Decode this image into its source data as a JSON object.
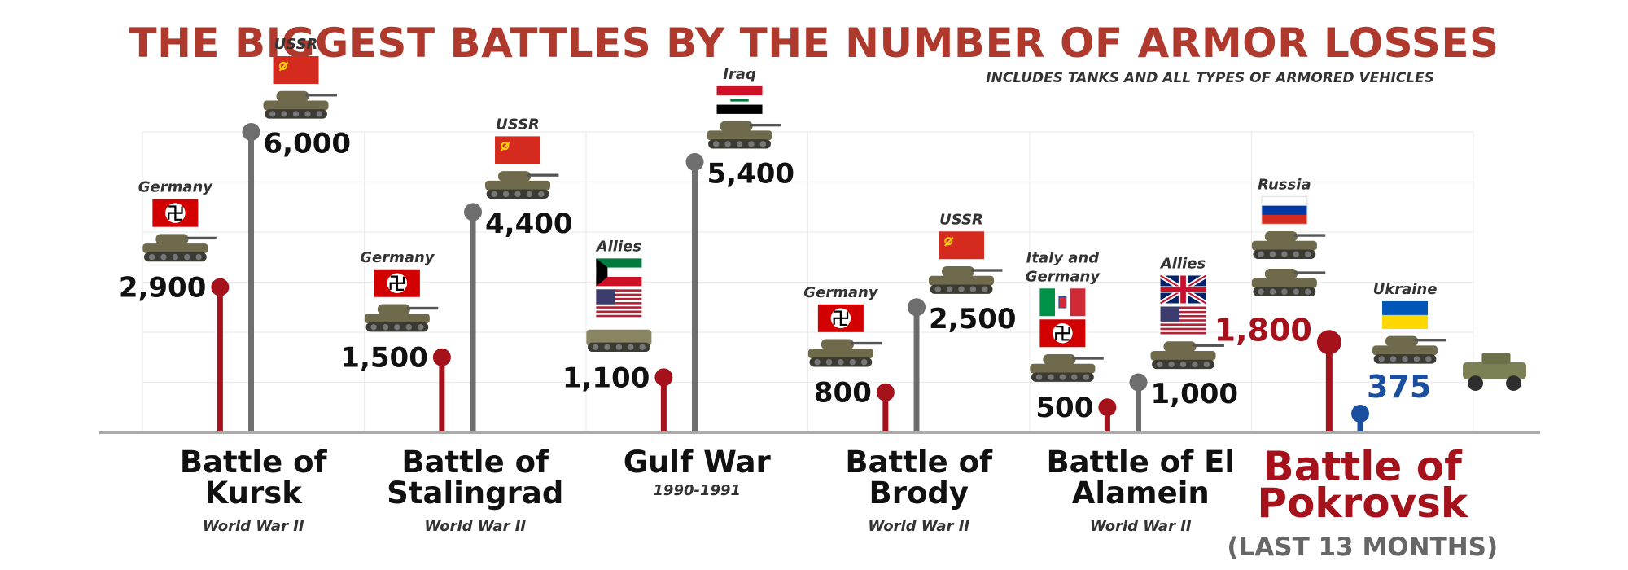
{
  "header": {
    "title": "THE BIGGEST BATTLES BY THE NUMBER OF ARMOR LOSSES",
    "subtitle": "INCLUDES TANKS AND ALL TYPES OF ARMORED VEHICLES"
  },
  "colors": {
    "title": "#b0392d",
    "loser": "#a5121c",
    "winner": "#6e6e6e",
    "ukraine": "#1a4fa0"
  },
  "chart_data": {
    "type": "lollipop",
    "title": "THE BIGGEST BATTLES BY THE NUMBER OF ARMOR LOSSES",
    "subtitle": "INCLUDES TANKS AND ALL TYPES OF ARMORED VEHICLES",
    "xlabel": "",
    "ylabel": "",
    "ylim": [
      0,
      6000
    ],
    "grid": true,
    "categories": [
      "Battle of Kursk",
      "Battle of Stalingrad",
      "Gulf War",
      "Battle of Brody",
      "Battle of El Alamein",
      "Battle of Pokrovsk"
    ],
    "battles": [
      {
        "name": "Battle of Kursk",
        "subtitle": "World War II",
        "sides": [
          {
            "label": "Germany",
            "value": 2900,
            "value_label": "2,900",
            "flags": [
              "germany"
            ],
            "color": "#a5121c"
          },
          {
            "label": "USSR",
            "value": 6000,
            "value_label": "6,000",
            "flags": [
              "ussr"
            ],
            "color": "#6e6e6e"
          }
        ]
      },
      {
        "name": "Battle of Stalingrad",
        "subtitle": "World War II",
        "sides": [
          {
            "label": "Germany",
            "value": 1500,
            "value_label": "1,500",
            "flags": [
              "germany"
            ],
            "color": "#a5121c"
          },
          {
            "label": "USSR",
            "value": 4400,
            "value_label": "4,400",
            "flags": [
              "ussr"
            ],
            "color": "#6e6e6e"
          }
        ]
      },
      {
        "name": "Gulf War",
        "subtitle": "1990-1991",
        "sides": [
          {
            "label": "Allies",
            "value": 1100,
            "value_label": "1,100",
            "flags": [
              "kuwait",
              "usa"
            ],
            "color": "#a5121c"
          },
          {
            "label": "Iraq",
            "value": 5400,
            "value_label": "5,400",
            "flags": [
              "iraq"
            ],
            "color": "#6e6e6e"
          }
        ]
      },
      {
        "name": "Battle of Brody",
        "subtitle": "World War II",
        "sides": [
          {
            "label": "Germany",
            "value": 800,
            "value_label": "800",
            "flags": [
              "germany"
            ],
            "color": "#a5121c"
          },
          {
            "label": "USSR",
            "value": 2500,
            "value_label": "2,500",
            "flags": [
              "ussr"
            ],
            "color": "#6e6e6e"
          }
        ]
      },
      {
        "name": "Battle of El Alamein",
        "subtitle": "World War II",
        "sides": [
          {
            "label": "Italy and Germany",
            "value": 500,
            "value_label": "500",
            "flags": [
              "italy",
              "germany"
            ],
            "color": "#a5121c"
          },
          {
            "label": "Allies",
            "value": 1000,
            "value_label": "1,000",
            "flags": [
              "uk",
              "usa"
            ],
            "color": "#6e6e6e"
          }
        ]
      },
      {
        "name": "Battle of Pokrovsk",
        "subtitle": "(LAST 13 MONTHS)",
        "highlight": true,
        "sides": [
          {
            "label": "Russia",
            "value": 1800,
            "value_label": "1,800",
            "flags": [
              "russia"
            ],
            "color": "#a5121c"
          },
          {
            "label": "Ukraine",
            "value": 375,
            "value_label": "375",
            "flags": [
              "ukraine"
            ],
            "color": "#1a4fa0"
          }
        ]
      }
    ]
  }
}
